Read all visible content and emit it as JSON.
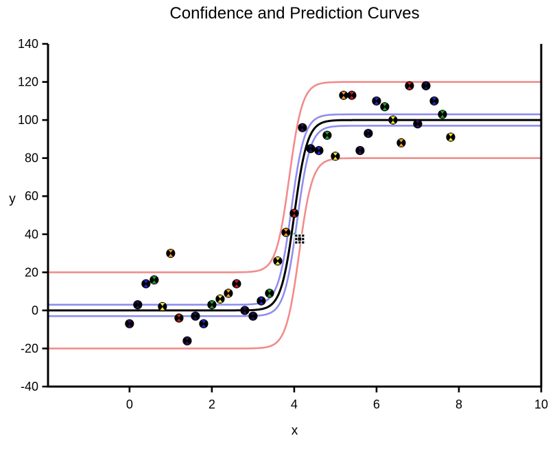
{
  "chart_data": {
    "type": "scatter",
    "title": "Confidence and Prediction Curves",
    "xlabel": "x",
    "ylabel": "y",
    "background": "#ffffff",
    "axes": {
      "xlim": [
        -1.98,
        10
      ],
      "ylim": [
        -40,
        140
      ],
      "x_ticks": [
        0,
        2,
        4,
        6,
        8,
        10
      ],
      "y_ticks": [
        140,
        120,
        100,
        80,
        60,
        40,
        20,
        0,
        -20,
        -40
      ],
      "grid": false,
      "frame": [
        "left",
        "bottom",
        "right"
      ],
      "axis_color": "#000000"
    },
    "fit_model": "logistic sigmoid y = ymax/(1+exp(-(x-x0)/s))",
    "sigmoid": {
      "ymax": 100,
      "x0": 4.0,
      "s": 0.16
    },
    "curves": [
      {
        "name": "prediction-band-upper",
        "kind": "prediction",
        "color": "#f28b8b",
        "dy": 20,
        "dx": 0.12
      },
      {
        "name": "prediction-band-lower",
        "kind": "prediction",
        "color": "#f28b8b",
        "dy": -20,
        "dx": -0.12
      },
      {
        "name": "confidence-band-upper",
        "kind": "confidence",
        "color": "#8d8df0",
        "dy": 3,
        "dx": 0.07
      },
      {
        "name": "confidence-band-lower",
        "kind": "confidence",
        "color": "#8d8df0",
        "dy": -3,
        "dx": -0.07
      },
      {
        "name": "fit-line",
        "kind": "fit",
        "color": "#000000",
        "dy": 0,
        "dx": 0
      }
    ],
    "marker": "black circle with colored hourglass glyph",
    "palette": {
      "purple": "#31135e",
      "navy": "#161660",
      "blue": "#2626c9",
      "green": "#1ca32e",
      "yellow": "#f2e832",
      "orange": "#f59d20",
      "red": "#cc2020"
    },
    "points": [
      {
        "x": 0.0,
        "y": -7,
        "c": "purple"
      },
      {
        "x": 0.2,
        "y": 3,
        "c": "navy"
      },
      {
        "x": 0.4,
        "y": 14,
        "c": "blue"
      },
      {
        "x": 0.6,
        "y": 16,
        "c": "green"
      },
      {
        "x": 0.8,
        "y": 2,
        "c": "yellow"
      },
      {
        "x": 1.0,
        "y": 30,
        "c": "orange"
      },
      {
        "x": 1.2,
        "y": -4,
        "c": "red"
      },
      {
        "x": 1.4,
        "y": -16,
        "c": "purple"
      },
      {
        "x": 1.6,
        "y": -3,
        "c": "navy"
      },
      {
        "x": 1.8,
        "y": -7,
        "c": "blue"
      },
      {
        "x": 2.0,
        "y": 3,
        "c": "green"
      },
      {
        "x": 2.2,
        "y": 6,
        "c": "yellow"
      },
      {
        "x": 2.4,
        "y": 9,
        "c": "orange"
      },
      {
        "x": 2.6,
        "y": 14,
        "c": "red"
      },
      {
        "x": 2.8,
        "y": 0,
        "c": "purple"
      },
      {
        "x": 3.0,
        "y": -3,
        "c": "navy"
      },
      {
        "x": 3.2,
        "y": 5,
        "c": "blue"
      },
      {
        "x": 3.4,
        "y": 9,
        "c": "green"
      },
      {
        "x": 3.6,
        "y": 26,
        "c": "yellow"
      },
      {
        "x": 3.8,
        "y": 41,
        "c": "orange"
      },
      {
        "x": 4.0,
        "y": 51,
        "c": "red"
      },
      {
        "x": 4.2,
        "y": 96,
        "c": "purple"
      },
      {
        "x": 4.4,
        "y": 85,
        "c": "navy"
      },
      {
        "x": 4.6,
        "y": 84,
        "c": "blue"
      },
      {
        "x": 4.8,
        "y": 92,
        "c": "green"
      },
      {
        "x": 5.0,
        "y": 81,
        "c": "yellow"
      },
      {
        "x": 5.2,
        "y": 113,
        "c": "orange"
      },
      {
        "x": 5.4,
        "y": 113,
        "c": "red"
      },
      {
        "x": 5.6,
        "y": 84,
        "c": "purple"
      },
      {
        "x": 5.8,
        "y": 93,
        "c": "navy"
      },
      {
        "x": 6.0,
        "y": 110,
        "c": "blue"
      },
      {
        "x": 6.2,
        "y": 107,
        "c": "green"
      },
      {
        "x": 6.4,
        "y": 100,
        "c": "yellow"
      },
      {
        "x": 6.6,
        "y": 88,
        "c": "orange"
      },
      {
        "x": 6.8,
        "y": 118,
        "c": "red"
      },
      {
        "x": 7.0,
        "y": 98,
        "c": "purple"
      },
      {
        "x": 7.2,
        "y": 118,
        "c": "navy"
      },
      {
        "x": 7.4,
        "y": 110,
        "c": "blue"
      },
      {
        "x": 7.6,
        "y": 103,
        "c": "green"
      },
      {
        "x": 7.8,
        "y": 91,
        "c": "yellow"
      }
    ],
    "cursor": {
      "x": 4.13,
      "y": 37.5
    }
  }
}
